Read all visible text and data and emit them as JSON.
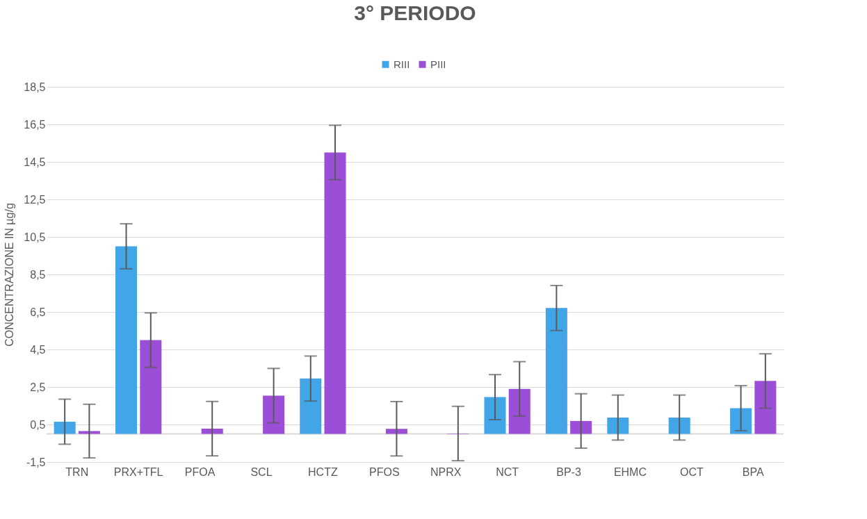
{
  "chart_data": {
    "type": "bar",
    "title": "3° PERIODO",
    "ylabel": "CONCENTRAZIONE IN µg/g",
    "categories": [
      "TRN",
      "PRX+TFL",
      "PFOA",
      "SCL",
      "HCTZ",
      "PFOS",
      "NPRX",
      "NCT",
      "BP-3",
      "EHMC",
      "OCT",
      "BPA"
    ],
    "series": [
      {
        "name": "RIII",
        "color": "#42a5e8",
        "values": [
          0.65,
          10.0,
          null,
          null,
          2.95,
          null,
          null,
          1.96,
          6.71,
          0.87,
          0.87,
          1.37
        ],
        "errors": [
          1.2,
          1.2,
          null,
          null,
          1.2,
          null,
          null,
          1.2,
          1.2,
          1.2,
          1.2,
          1.2
        ]
      },
      {
        "name": "PIII",
        "color": "#9b4fd6",
        "values": [
          0.15,
          5.0,
          0.28,
          2.04,
          15.0,
          0.27,
          0.02,
          2.4,
          0.69,
          null,
          null,
          2.82
        ],
        "errors": [
          1.43,
          1.45,
          1.45,
          1.45,
          1.45,
          1.45,
          1.45,
          1.45,
          1.45,
          null,
          null,
          1.45
        ]
      }
    ],
    "ylim": [
      -1.5,
      18.5
    ],
    "yticks": [
      {
        "value": -1.5,
        "label": "-1,5"
      },
      {
        "value": 0.5,
        "label": "0,5"
      },
      {
        "value": 2.5,
        "label": "2,5"
      },
      {
        "value": 4.5,
        "label": "4,5"
      },
      {
        "value": 6.5,
        "label": "6,5"
      },
      {
        "value": 8.5,
        "label": "8,5"
      },
      {
        "value": 10.5,
        "label": "10,5"
      },
      {
        "value": 12.5,
        "label": "12,5"
      },
      {
        "value": 14.5,
        "label": "14,5"
      },
      {
        "value": 16.5,
        "label": "16,5"
      },
      {
        "value": 18.5,
        "label": "18,5"
      }
    ],
    "grid": "y",
    "legend": "top"
  }
}
